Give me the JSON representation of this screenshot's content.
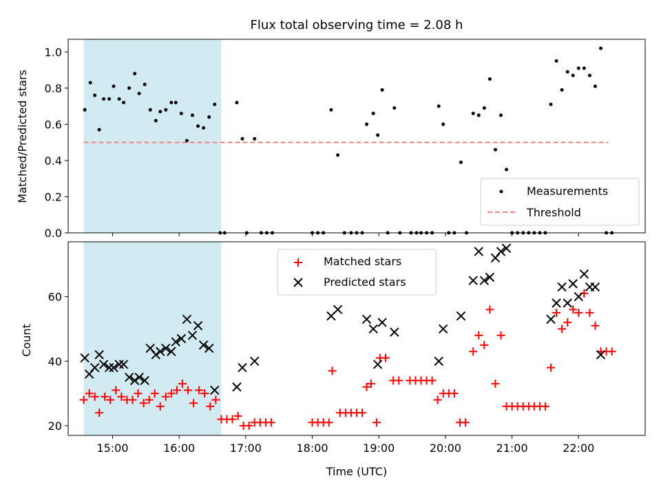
{
  "title": "Flux total observing time = 2.08 h",
  "colors": {
    "measurement": "#000000",
    "threshold": "#f08080",
    "matched": "#ff0000",
    "predicted": "#000000",
    "shade": "#add8e6"
  },
  "chart_data": [
    {
      "type": "scatter",
      "ylabel": "Matched/Predicted stars",
      "xlabel": "",
      "xlim": [
        "14:20",
        "23:00"
      ],
      "ylim": [
        0,
        1.07
      ],
      "yticks": [
        0.0,
        0.2,
        0.4,
        0.6,
        0.8,
        1.0
      ],
      "ytick_labels": [
        "0.0",
        "0.2",
        "0.4",
        "0.6",
        "0.8",
        "1.0"
      ],
      "xtick_labels_visible": false,
      "shaded_span": [
        "14:34",
        "16:38"
      ],
      "legend_loc": "lower right",
      "series": [
        {
          "name": "Measurements",
          "marker": "dot",
          "points": [
            [
              "14:35",
              0.68
            ],
            [
              "14:40",
              0.83
            ],
            [
              "14:44",
              0.76
            ],
            [
              "14:48",
              0.57
            ],
            [
              "14:52",
              0.74
            ],
            [
              "14:57",
              0.74
            ],
            [
              "15:01",
              0.81
            ],
            [
              "15:06",
              0.74
            ],
            [
              "15:10",
              0.72
            ],
            [
              "15:15",
              0.8
            ],
            [
              "15:20",
              0.88
            ],
            [
              "15:24",
              0.77
            ],
            [
              "15:29",
              0.82
            ],
            [
              "15:34",
              0.68
            ],
            [
              "15:39",
              0.62
            ],
            [
              "15:43",
              0.67
            ],
            [
              "15:48",
              0.68
            ],
            [
              "15:53",
              0.72
            ],
            [
              "15:57",
              0.72
            ],
            [
              "16:02",
              0.66
            ],
            [
              "16:07",
              0.51
            ],
            [
              "16:12",
              0.65
            ],
            [
              "16:17",
              0.59
            ],
            [
              "16:22",
              0.58
            ],
            [
              "16:27",
              0.64
            ],
            [
              "16:32",
              0.71
            ],
            [
              "16:37",
              0.0
            ],
            [
              "16:41",
              0.0
            ],
            [
              "16:52",
              0.72
            ],
            [
              "16:57",
              0.52
            ],
            [
              "17:01",
              0.0
            ],
            [
              "17:08",
              0.52
            ],
            [
              "17:14",
              0.0
            ],
            [
              "17:19",
              0.0
            ],
            [
              "17:24",
              0.0
            ],
            [
              "18:00",
              0.0
            ],
            [
              "18:05",
              0.0
            ],
            [
              "18:10",
              0.0
            ],
            [
              "18:17",
              0.68
            ],
            [
              "18:23",
              0.43
            ],
            [
              "18:29",
              0.0
            ],
            [
              "18:35",
              0.0
            ],
            [
              "18:40",
              0.0
            ],
            [
              "18:45",
              0.0
            ],
            [
              "18:49",
              0.6
            ],
            [
              "18:55",
              0.66
            ],
            [
              "18:59",
              0.54
            ],
            [
              "19:03",
              0.79
            ],
            [
              "19:08",
              0.0
            ],
            [
              "19:14",
              0.69
            ],
            [
              "19:19",
              0.0
            ],
            [
              "19:29",
              0.0
            ],
            [
              "19:34",
              0.0
            ],
            [
              "19:38",
              0.0
            ],
            [
              "19:43",
              0.0
            ],
            [
              "19:48",
              0.0
            ],
            [
              "19:54",
              0.7
            ],
            [
              "19:58",
              0.6
            ],
            [
              "20:03",
              0.0
            ],
            [
              "20:08",
              0.0
            ],
            [
              "20:14",
              0.39
            ],
            [
              "20:19",
              0.0
            ],
            [
              "20:25",
              0.66
            ],
            [
              "20:30",
              0.65
            ],
            [
              "20:35",
              0.69
            ],
            [
              "20:40",
              0.85
            ],
            [
              "20:45",
              0.46
            ],
            [
              "20:50",
              0.65
            ],
            [
              "20:55",
              0.35
            ],
            [
              "21:00",
              0.0
            ],
            [
              "21:05",
              0.0
            ],
            [
              "21:10",
              0.0
            ],
            [
              "21:15",
              0.0
            ],
            [
              "21:20",
              0.0
            ],
            [
              "21:25",
              0.0
            ],
            [
              "21:30",
              0.0
            ],
            [
              "21:35",
              0.71
            ],
            [
              "21:40",
              0.95
            ],
            [
              "21:45",
              0.79
            ],
            [
              "21:50",
              0.89
            ],
            [
              "21:55",
              0.87
            ],
            [
              "22:00",
              0.91
            ],
            [
              "22:05",
              0.91
            ],
            [
              "22:10",
              0.87
            ],
            [
              "22:15",
              0.81
            ],
            [
              "22:20",
              1.02
            ],
            [
              "22:25",
              0.0
            ],
            [
              "22:30",
              0.0
            ]
          ]
        },
        {
          "name": "Threshold",
          "marker": "dashed-line",
          "points": [
            [
              "14:34",
              0.5
            ],
            [
              "22:27",
              0.5
            ]
          ]
        }
      ]
    },
    {
      "type": "scatter",
      "ylabel": "Count",
      "xlabel": "Time (UTC)",
      "xlim": [
        "14:20",
        "23:00"
      ],
      "ylim": [
        17,
        77
      ],
      "yticks": [
        20,
        40,
        60
      ],
      "ytick_labels": [
        "20",
        "40",
        "60"
      ],
      "xticks": [
        "15:00",
        "16:00",
        "17:00",
        "18:00",
        "19:00",
        "20:00",
        "21:00",
        "22:00"
      ],
      "xtick_labels": [
        "15:00",
        "16:00",
        "17:00",
        "18:00",
        "19:00",
        "20:00",
        "21:00",
        "22:00"
      ],
      "shaded_span": [
        "14:34",
        "16:38"
      ],
      "legend_loc": "upper center",
      "series": [
        {
          "name": "Matched stars",
          "marker": "plus",
          "points": [
            [
              "14:34",
              28
            ],
            [
              "14:39",
              30
            ],
            [
              "14:44",
              29
            ],
            [
              "14:48",
              24
            ],
            [
              "14:53",
              29
            ],
            [
              "14:58",
              28
            ],
            [
              "15:03",
              31
            ],
            [
              "15:08",
              29
            ],
            [
              "15:13",
              28
            ],
            [
              "15:18",
              28
            ],
            [
              "15:23",
              30
            ],
            [
              "15:28",
              27
            ],
            [
              "15:33",
              28
            ],
            [
              "15:38",
              30
            ],
            [
              "15:43",
              26
            ],
            [
              "15:48",
              29
            ],
            [
              "15:53",
              30
            ],
            [
              "15:58",
              31
            ],
            [
              "16:03",
              33
            ],
            [
              "16:08",
              31
            ],
            [
              "16:13",
              27
            ],
            [
              "16:18",
              31
            ],
            [
              "16:23",
              30
            ],
            [
              "16:28",
              26
            ],
            [
              "16:33",
              28
            ],
            [
              "16:38",
              22
            ],
            [
              "16:43",
              22
            ],
            [
              "16:48",
              22
            ],
            [
              "16:53",
              23
            ],
            [
              "16:58",
              20
            ],
            [
              "17:03",
              20
            ],
            [
              "17:08",
              21
            ],
            [
              "17:13",
              21
            ],
            [
              "17:18",
              21
            ],
            [
              "17:23",
              21
            ],
            [
              "18:00",
              21
            ],
            [
              "18:05",
              21
            ],
            [
              "18:10",
              21
            ],
            [
              "18:15",
              21
            ],
            [
              "18:18",
              37
            ],
            [
              "18:25",
              24
            ],
            [
              "18:30",
              24
            ],
            [
              "18:35",
              24
            ],
            [
              "18:40",
              24
            ],
            [
              "18:45",
              24
            ],
            [
              "18:49",
              32
            ],
            [
              "18:53",
              33
            ],
            [
              "18:58",
              21
            ],
            [
              "19:01",
              41
            ],
            [
              "19:06",
              41
            ],
            [
              "19:13",
              34
            ],
            [
              "19:18",
              34
            ],
            [
              "19:28",
              34
            ],
            [
              "19:33",
              34
            ],
            [
              "19:38",
              34
            ],
            [
              "19:43",
              34
            ],
            [
              "19:48",
              34
            ],
            [
              "19:53",
              28
            ],
            [
              "19:58",
              30
            ],
            [
              "20:03",
              30
            ],
            [
              "20:08",
              30
            ],
            [
              "20:13",
              21
            ],
            [
              "20:18",
              21
            ],
            [
              "20:25",
              43
            ],
            [
              "20:30",
              48
            ],
            [
              "20:35",
              45
            ],
            [
              "20:40",
              56
            ],
            [
              "20:45",
              33
            ],
            [
              "20:50",
              48
            ],
            [
              "20:55",
              26
            ],
            [
              "21:00",
              26
            ],
            [
              "21:05",
              26
            ],
            [
              "21:10",
              26
            ],
            [
              "21:15",
              26
            ],
            [
              "21:20",
              26
            ],
            [
              "21:25",
              26
            ],
            [
              "21:30",
              26
            ],
            [
              "21:35",
              38
            ],
            [
              "21:40",
              55
            ],
            [
              "21:45",
              50
            ],
            [
              "21:50",
              52
            ],
            [
              "21:55",
              56
            ],
            [
              "22:00",
              55
            ],
            [
              "22:05",
              61
            ],
            [
              "22:10",
              55
            ],
            [
              "22:15",
              51
            ],
            [
              "22:20",
              43
            ],
            [
              "22:25",
              43
            ],
            [
              "22:30",
              43
            ]
          ]
        },
        {
          "name": "Predicted stars",
          "marker": "x",
          "points": [
            [
              "14:35",
              41
            ],
            [
              "14:39",
              36
            ],
            [
              "14:44",
              38
            ],
            [
              "14:48",
              42
            ],
            [
              "14:52",
              39
            ],
            [
              "14:57",
              38
            ],
            [
              "15:01",
              38
            ],
            [
              "15:06",
              39
            ],
            [
              "15:10",
              39
            ],
            [
              "15:15",
              35
            ],
            [
              "15:20",
              34
            ],
            [
              "15:24",
              35
            ],
            [
              "15:29",
              34
            ],
            [
              "15:34",
              44
            ],
            [
              "15:39",
              42
            ],
            [
              "15:43",
              43
            ],
            [
              "15:48",
              44
            ],
            [
              "15:53",
              43
            ],
            [
              "15:57",
              46
            ],
            [
              "16:02",
              47
            ],
            [
              "16:07",
              53
            ],
            [
              "16:12",
              48
            ],
            [
              "16:17",
              51
            ],
            [
              "16:22",
              45
            ],
            [
              "16:27",
              44
            ],
            [
              "16:32",
              31
            ],
            [
              "16:52",
              32
            ],
            [
              "16:57",
              38
            ],
            [
              "17:08",
              40
            ],
            [
              "18:17",
              54
            ],
            [
              "18:23",
              56
            ],
            [
              "18:49",
              53
            ],
            [
              "18:55",
              50
            ],
            [
              "18:59",
              39
            ],
            [
              "19:03",
              52
            ],
            [
              "19:14",
              49
            ],
            [
              "19:54",
              40
            ],
            [
              "19:58",
              50
            ],
            [
              "20:14",
              54
            ],
            [
              "20:25",
              65
            ],
            [
              "20:30",
              74
            ],
            [
              "20:35",
              65
            ],
            [
              "20:40",
              66
            ],
            [
              "20:45",
              72
            ],
            [
              "20:50",
              74
            ],
            [
              "20:55",
              75
            ],
            [
              "21:35",
              53
            ],
            [
              "21:40",
              58
            ],
            [
              "21:45",
              63
            ],
            [
              "21:50",
              58
            ],
            [
              "21:55",
              64
            ],
            [
              "22:00",
              60
            ],
            [
              "22:05",
              67
            ],
            [
              "22:10",
              63
            ],
            [
              "22:15",
              63
            ],
            [
              "22:20",
              42
            ]
          ]
        }
      ]
    }
  ]
}
